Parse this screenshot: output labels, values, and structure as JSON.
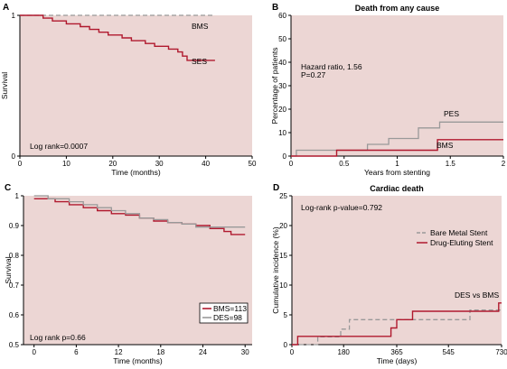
{
  "chart_data": [
    {
      "panel": "A",
      "type": "line",
      "title": "",
      "xlabel": "Time (months)",
      "ylabel": "Survival",
      "xlim": [
        0,
        50
      ],
      "ylim": [
        0,
        1
      ],
      "xticks": [
        0,
        10,
        20,
        30,
        40,
        50
      ],
      "yticks": [
        0,
        1
      ],
      "grid": false,
      "background": "#ecd6d4",
      "annotations": [
        "Log rank=0.0007"
      ],
      "series": [
        {
          "name": "BMS",
          "color": "#999999",
          "dash": "dashed",
          "step": true,
          "x": [
            0,
            42
          ],
          "y": [
            1.0,
            1.0
          ]
        },
        {
          "name": "SES",
          "color": "#b0192e",
          "dash": "solid",
          "step": true,
          "x": [
            0,
            5,
            7,
            10,
            13,
            15,
            17,
            19,
            22,
            24,
            27,
            29,
            32,
            34,
            35,
            36,
            42
          ],
          "y": [
            1.0,
            0.98,
            0.96,
            0.94,
            0.92,
            0.9,
            0.88,
            0.86,
            0.84,
            0.82,
            0.8,
            0.78,
            0.76,
            0.74,
            0.71,
            0.68,
            0.68
          ]
        }
      ]
    },
    {
      "panel": "B",
      "type": "line",
      "title": "Death from any cause",
      "xlabel": "Years from stenting",
      "ylabel": "Percentage of patients",
      "xlim": [
        0,
        2
      ],
      "ylim": [
        0,
        60
      ],
      "xticks": [
        0,
        0.5,
        1,
        1.5,
        2
      ],
      "yticks": [
        0,
        10,
        20,
        30,
        40,
        50,
        60
      ],
      "grid": false,
      "background": "#ecd6d4",
      "annotations": [
        "Hazard ratio, 1.56",
        "P=0.27"
      ],
      "series": [
        {
          "name": "PES",
          "color": "#999999",
          "dash": "solid",
          "step": true,
          "x": [
            0,
            0.05,
            0.43,
            0.72,
            0.92,
            1.2,
            1.4,
            2.0
          ],
          "y": [
            0,
            2.5,
            2.5,
            5,
            7.5,
            12,
            14.5,
            14.5
          ]
        },
        {
          "name": "BMS",
          "color": "#b0192e",
          "dash": "solid",
          "step": true,
          "x": [
            0,
            0.43,
            1.38,
            2.0
          ],
          "y": [
            0,
            2.5,
            7,
            7
          ]
        }
      ]
    },
    {
      "panel": "C",
      "type": "line",
      "title": "",
      "xlabel": "Time (months)",
      "ylabel": "Survival",
      "xlim": [
        -1.5,
        31
      ],
      "ylim": [
        0.5,
        1.0
      ],
      "xticks": [
        0,
        6,
        12,
        18,
        24,
        30
      ],
      "yticks": [
        0.5,
        0.6,
        0.7,
        0.8,
        0.9,
        1
      ],
      "grid": false,
      "background": "#ecd6d4",
      "annotations": [
        "Log rank p=0.66"
      ],
      "legend": {
        "position": "bottom-right",
        "entries": [
          "BMS=113",
          "DES=98"
        ]
      },
      "series": [
        {
          "name": "BMS=113",
          "color": "#b0192e",
          "dash": "solid",
          "step": true,
          "x": [
            0,
            3,
            5,
            7,
            9,
            11,
            13,
            15,
            17,
            19,
            21,
            23,
            25,
            27,
            28,
            30
          ],
          "y": [
            0.99,
            0.98,
            0.97,
            0.96,
            0.95,
            0.94,
            0.935,
            0.925,
            0.915,
            0.91,
            0.905,
            0.9,
            0.89,
            0.88,
            0.87,
            0.87
          ]
        },
        {
          "name": "DES=98",
          "color": "#999999",
          "dash": "solid",
          "step": true,
          "x": [
            0,
            2,
            5,
            7,
            9,
            11,
            13,
            15,
            17,
            19,
            21,
            23,
            30
          ],
          "y": [
            1.0,
            0.99,
            0.98,
            0.97,
            0.96,
            0.95,
            0.94,
            0.925,
            0.92,
            0.91,
            0.905,
            0.895,
            0.895
          ]
        }
      ]
    },
    {
      "panel": "D",
      "type": "line",
      "title": "Cardiac death",
      "xlabel": "Time (days)",
      "ylabel": "Cumulative incidence (%)",
      "xlim": [
        0,
        730
      ],
      "ylim": [
        0,
        25
      ],
      "xticks": [
        0,
        180,
        365,
        545,
        730
      ],
      "yticks": [
        0,
        5,
        10,
        15,
        20,
        25
      ],
      "grid": false,
      "background": "#ecd6d4",
      "annotations": [
        "Log-rank p-value=0.792",
        "DES vs BMS"
      ],
      "legend": {
        "position": "top-right",
        "entries": [
          "Bare Metal Stent",
          "Drug-Eluting Stent"
        ]
      },
      "series": [
        {
          "name": "Bare Metal Stent",
          "color": "#999999",
          "dash": "dashed",
          "step": true,
          "x": [
            0,
            90,
            170,
            200,
            580,
            620,
            730
          ],
          "y": [
            0,
            1.3,
            2.6,
            4.2,
            4.2,
            5.8,
            5.8
          ]
        },
        {
          "name": "Drug-Eluting Stent",
          "color": "#b0192e",
          "dash": "solid",
          "step": true,
          "x": [
            0,
            20,
            180,
            345,
            365,
            420,
            580,
            720,
            730
          ],
          "y": [
            0,
            1.4,
            1.4,
            2.8,
            4.2,
            5.6,
            5.6,
            7.0,
            7.0
          ]
        }
      ]
    }
  ]
}
